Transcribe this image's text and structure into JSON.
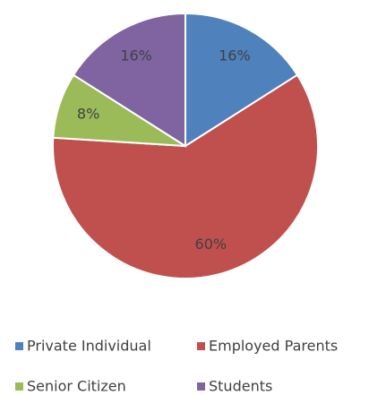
{
  "chart_data": {
    "type": "pie",
    "categories": [
      "Private Individual",
      "Employed Parents",
      "Senior Citizen",
      "Students"
    ],
    "values": [
      16,
      60,
      8,
      16
    ],
    "value_labels": [
      "16%",
      "60%",
      "8%",
      "16%"
    ],
    "colors": [
      "#4f81bd",
      "#c0504d",
      "#9bbb59",
      "#8064a2"
    ],
    "legend": "bottom"
  }
}
